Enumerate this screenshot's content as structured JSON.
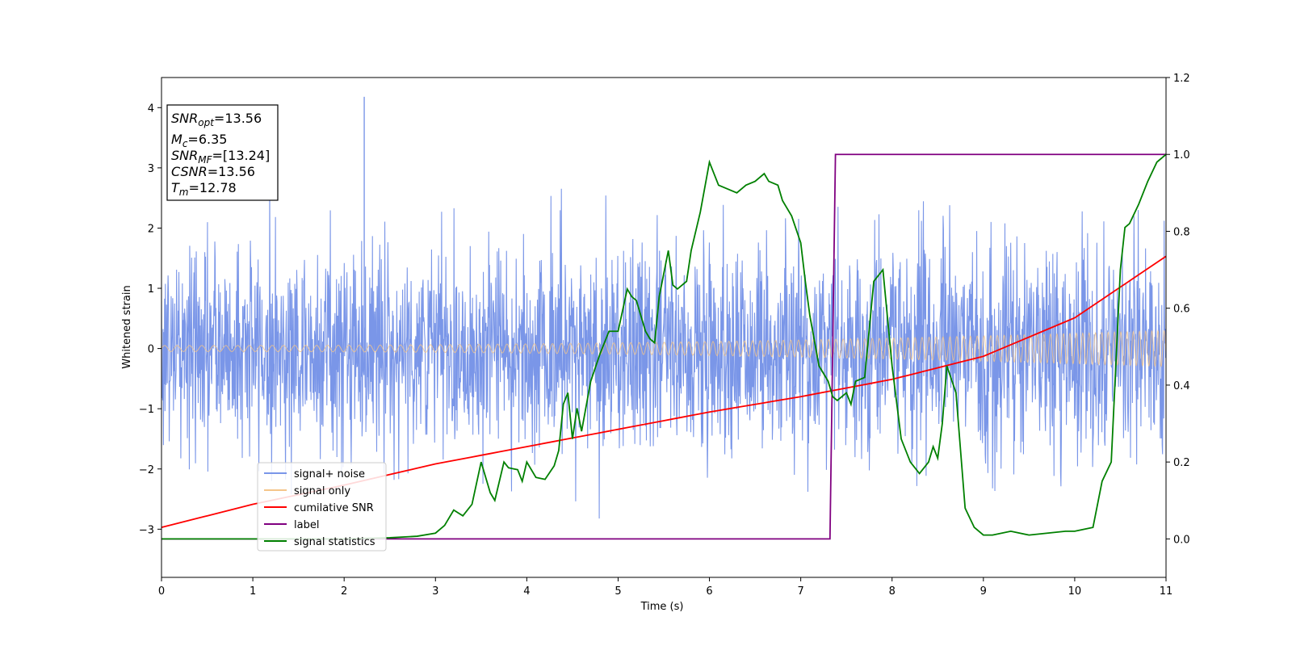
{
  "chart_data": {
    "type": "line",
    "xlabel": "Time (s)",
    "ylabel": "Whitened strain",
    "xlim": [
      0,
      11
    ],
    "ylim_left": [
      -3.8,
      4.5
    ],
    "ylim_right": [
      -0.1,
      1.2
    ],
    "x_ticks": [
      0,
      1,
      2,
      3,
      4,
      5,
      6,
      7,
      8,
      9,
      10,
      11
    ],
    "y_left_ticks": [
      -3,
      -2,
      -1,
      0,
      1,
      2,
      3,
      4
    ],
    "y_right_ticks": [
      "0.0",
      "0.2",
      "0.4",
      "0.6",
      "0.8",
      "1.0",
      "1.2"
    ],
    "grid": false,
    "legend_position": "lower-left",
    "annotation_box": {
      "lines": [
        {
          "symbol": "SNR",
          "sub": "opt",
          "value": "=13.56"
        },
        {
          "symbol": "M",
          "sub": "c",
          "value": "=6.35"
        },
        {
          "symbol": "SNR",
          "sub": "MF",
          "value": "=[13.24]"
        },
        {
          "symbol": "CSNR",
          "sub": "",
          "value": "=13.56"
        },
        {
          "symbol": "T",
          "sub": "m",
          "value": "=12.78"
        }
      ]
    },
    "series": [
      {
        "name": "signal+ noise",
        "axis": "left",
        "color": "#7a96e8",
        "noise_std": 0.85,
        "approx_peak": [
          2.22,
          4.18
        ]
      },
      {
        "name": "signal only",
        "axis": "left",
        "color": "#f5c58a",
        "amplitude_start": 0.05,
        "amplitude_end": 0.3
      },
      {
        "name": "cumilative SNR",
        "axis": "right",
        "color": "#ff0000",
        "x": [
          0,
          1,
          2,
          3,
          4,
          5,
          6,
          7,
          8,
          9,
          10,
          11
        ],
        "y": [
          0.03,
          0.09,
          0.14,
          0.195,
          0.24,
          0.285,
          0.33,
          0.37,
          0.415,
          0.475,
          0.575,
          0.735
        ]
      },
      {
        "name": "label",
        "axis": "right",
        "color": "#800080",
        "x": [
          0,
          7.32,
          7.38,
          11
        ],
        "y": [
          0,
          0,
          1,
          1
        ]
      },
      {
        "name": "signal statistics",
        "axis": "right",
        "color": "#008000",
        "x": [
          0,
          1.0,
          2.0,
          2.5,
          2.8,
          3.0,
          3.1,
          3.2,
          3.3,
          3.4,
          3.5,
          3.6,
          3.65,
          3.75,
          3.8,
          3.9,
          3.95,
          4.0,
          4.1,
          4.2,
          4.3,
          4.35,
          4.4,
          4.45,
          4.5,
          4.55,
          4.6,
          4.7,
          4.8,
          4.9,
          5.0,
          5.1,
          5.15,
          5.2,
          5.3,
          5.35,
          5.4,
          5.45,
          5.55,
          5.6,
          5.65,
          5.75,
          5.8,
          5.9,
          6.0,
          6.05,
          6.1,
          6.2,
          6.3,
          6.4,
          6.5,
          6.6,
          6.65,
          6.75,
          6.8,
          6.9,
          7.0,
          7.05,
          7.1,
          7.2,
          7.3,
          7.35,
          7.4,
          7.5,
          7.55,
          7.6,
          7.7,
          7.8,
          7.9,
          8.0,
          8.1,
          8.2,
          8.3,
          8.4,
          8.45,
          8.5,
          8.55,
          8.6,
          8.7,
          8.8,
          8.9,
          9.0,
          9.1,
          9.3,
          9.5,
          9.7,
          9.9,
          10.0,
          10.1,
          10.2,
          10.3,
          10.4,
          10.5,
          10.55,
          10.6,
          10.7,
          10.8,
          10.9,
          11.0
        ],
        "y": [
          0.0,
          0.0,
          0.0,
          0.003,
          0.007,
          0.015,
          0.035,
          0.075,
          0.06,
          0.09,
          0.2,
          0.12,
          0.1,
          0.2,
          0.185,
          0.18,
          0.15,
          0.2,
          0.16,
          0.155,
          0.19,
          0.23,
          0.35,
          0.38,
          0.26,
          0.34,
          0.28,
          0.41,
          0.48,
          0.54,
          0.54,
          0.65,
          0.63,
          0.62,
          0.54,
          0.52,
          0.51,
          0.63,
          0.75,
          0.66,
          0.65,
          0.67,
          0.75,
          0.85,
          0.98,
          0.95,
          0.92,
          0.91,
          0.9,
          0.92,
          0.93,
          0.95,
          0.93,
          0.92,
          0.88,
          0.84,
          0.77,
          0.67,
          0.58,
          0.45,
          0.41,
          0.37,
          0.36,
          0.38,
          0.35,
          0.41,
          0.42,
          0.67,
          0.7,
          0.45,
          0.26,
          0.2,
          0.17,
          0.2,
          0.24,
          0.21,
          0.3,
          0.45,
          0.38,
          0.08,
          0.03,
          0.01,
          0.01,
          0.02,
          0.01,
          0.015,
          0.02,
          0.02,
          0.025,
          0.03,
          0.15,
          0.2,
          0.7,
          0.81,
          0.82,
          0.87,
          0.93,
          0.98,
          1.0
        ]
      }
    ]
  }
}
